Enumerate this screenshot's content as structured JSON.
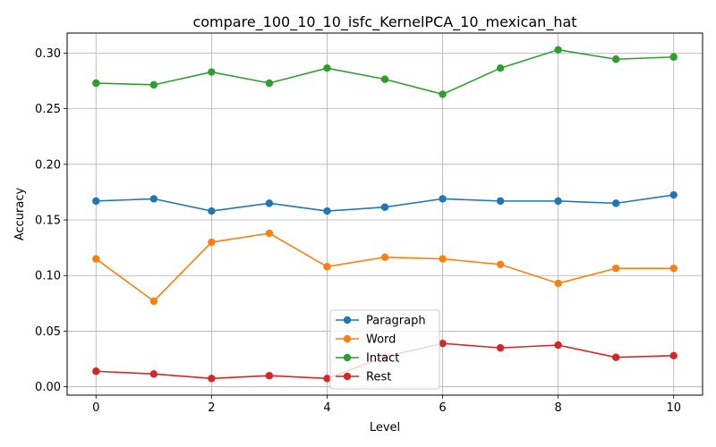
{
  "chart_data": {
    "type": "line",
    "title": "compare_100_10_10_isfc_KernelPCA_10_mexican_hat",
    "xlabel": "Level",
    "ylabel": "Accuracy",
    "xlim": [
      -0.5,
      10.5
    ],
    "ylim": [
      -0.0075,
      0.318
    ],
    "x": [
      0,
      1,
      2,
      3,
      4,
      5,
      6,
      7,
      8,
      9,
      10
    ],
    "xticks": [
      0,
      2,
      4,
      6,
      8,
      10
    ],
    "xtick_labels": [
      "0",
      "2",
      "4",
      "6",
      "8",
      "10"
    ],
    "yticks": [
      0.0,
      0.05,
      0.1,
      0.15,
      0.2,
      0.25,
      0.3
    ],
    "ytick_labels": [
      "0.00",
      "0.05",
      "0.10",
      "0.15",
      "0.20",
      "0.25",
      "0.30"
    ],
    "grid": true,
    "legend_position": "lower-center",
    "series": [
      {
        "name": "Paragraph",
        "color": "#1f77b4",
        "values": [
          0.167,
          0.169,
          0.158,
          0.165,
          0.158,
          0.1615,
          0.169,
          0.167,
          0.167,
          0.165,
          0.1725
        ]
      },
      {
        "name": "Word",
        "color": "#ff7f0e",
        "values": [
          0.115,
          0.077,
          0.13,
          0.138,
          0.108,
          0.1165,
          0.115,
          0.11,
          0.093,
          0.1065,
          0.1065
        ]
      },
      {
        "name": "Intact",
        "color": "#2ca02c",
        "values": [
          0.273,
          0.2715,
          0.283,
          0.273,
          0.2865,
          0.2765,
          0.263,
          0.2865,
          0.303,
          0.2945,
          0.2965
        ]
      },
      {
        "name": "Rest",
        "color": "#d62728",
        "values": [
          0.014,
          0.0115,
          0.0075,
          0.01,
          0.0075,
          0.027,
          0.039,
          0.035,
          0.0375,
          0.0265,
          0.028
        ]
      }
    ]
  }
}
